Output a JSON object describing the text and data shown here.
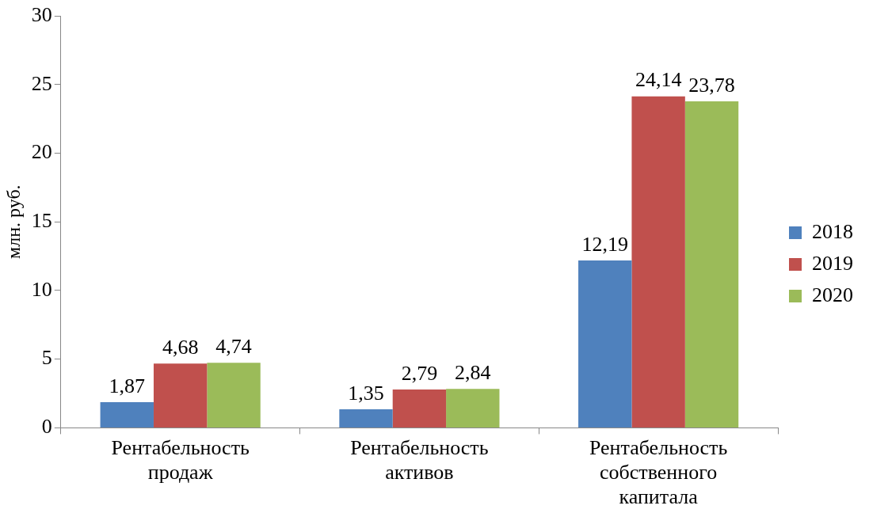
{
  "chart_data": {
    "type": "bar",
    "ylabel": "млн. руб.",
    "categories": [
      "Рентабельность продаж",
      "Рентабельность активов",
      "Рентабельность собственного капитала"
    ],
    "series": [
      {
        "name": "2018",
        "color": "#4f81bd",
        "values": [
          1.87,
          1.35,
          12.19
        ],
        "value_labels": [
          "1,87",
          "1,35",
          "12,19"
        ]
      },
      {
        "name": "2019",
        "color": "#c0504d",
        "values": [
          4.68,
          2.79,
          24.14
        ],
        "value_labels": [
          "4,68",
          "2,79",
          "24,14"
        ]
      },
      {
        "name": "2020",
        "color": "#9bbb59",
        "values": [
          4.74,
          2.84,
          23.78
        ],
        "value_labels": [
          "4,74",
          "2,84",
          "23,78"
        ]
      }
    ],
    "ylim": [
      0,
      30
    ],
    "yticks": [
      0,
      5,
      10,
      15,
      20,
      25,
      30
    ],
    "grid": false,
    "legend": "right"
  }
}
